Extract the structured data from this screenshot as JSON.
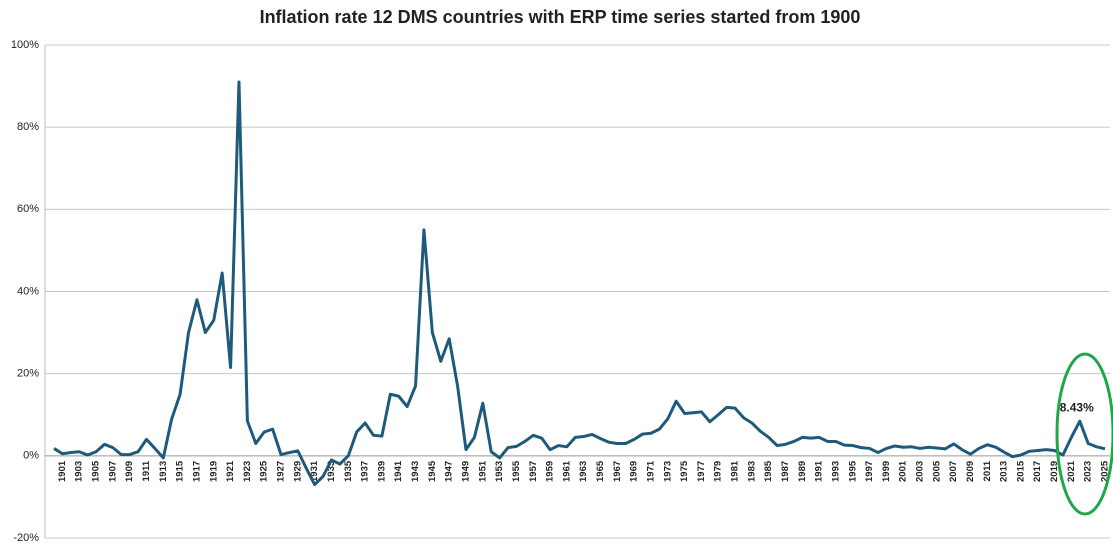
{
  "chart_data": {
    "type": "line",
    "title": "Inflation rate 12 DMS countries with ERP time series started from 1900",
    "x": [
      1900,
      1901,
      1902,
      1903,
      1904,
      1905,
      1906,
      1907,
      1908,
      1909,
      1910,
      1911,
      1912,
      1913,
      1914,
      1915,
      1916,
      1917,
      1918,
      1919,
      1920,
      1921,
      1922,
      1923,
      1924,
      1925,
      1926,
      1927,
      1928,
      1929,
      1930,
      1931,
      1932,
      1933,
      1934,
      1935,
      1936,
      1937,
      1938,
      1939,
      1940,
      1941,
      1942,
      1943,
      1944,
      1945,
      1946,
      1947,
      1948,
      1949,
      1950,
      1951,
      1952,
      1953,
      1954,
      1955,
      1956,
      1957,
      1958,
      1959,
      1960,
      1961,
      1962,
      1963,
      1964,
      1965,
      1966,
      1967,
      1968,
      1969,
      1970,
      1971,
      1972,
      1973,
      1974,
      1975,
      1976,
      1977,
      1978,
      1979,
      1980,
      1981,
      1982,
      1983,
      1984,
      1985,
      1986,
      1987,
      1988,
      1989,
      1990,
      1991,
      1992,
      1993,
      1994,
      1995,
      1996,
      1997,
      1998,
      1999,
      2000,
      2001,
      2002,
      2003,
      2004,
      2005,
      2006,
      2007,
      2008,
      2009,
      2010,
      2011,
      2012,
      2013,
      2014,
      2015,
      2016,
      2017,
      2018,
      2019,
      2020,
      2021,
      2022,
      2023,
      2024,
      2025
    ],
    "xticks": [
      1901,
      1903,
      1905,
      1907,
      1909,
      1911,
      1913,
      1915,
      1917,
      1919,
      1921,
      1923,
      1925,
      1927,
      1929,
      1931,
      1933,
      1935,
      1937,
      1939,
      1941,
      1943,
      1945,
      1947,
      1949,
      1951,
      1953,
      1955,
      1957,
      1959,
      1961,
      1963,
      1965,
      1967,
      1969,
      1971,
      1973,
      1975,
      1977,
      1979,
      1981,
      1983,
      1985,
      1987,
      1989,
      1991,
      1993,
      1995,
      1997,
      1999,
      2001,
      2003,
      2005,
      2007,
      2009,
      2011,
      2013,
      2015,
      2017,
      2019,
      2021,
      2023,
      2025
    ],
    "series": [
      {
        "color": "#1f5a7a",
        "values": [
          1.8,
          0.5,
          0.8,
          1.0,
          0.2,
          1.0,
          2.8,
          2.0,
          0.3,
          0.3,
          1.0,
          4.0,
          1.8,
          -0.5,
          9,
          15,
          30,
          38,
          30,
          33,
          44.5,
          21.5,
          91,
          8.5,
          3,
          5.8,
          6.5,
          0.3,
          0.8,
          1.2,
          -3,
          -7,
          -5,
          -1,
          -2,
          0,
          5.8,
          8,
          5,
          4.8,
          15,
          14.5,
          12,
          17,
          55,
          30,
          23,
          28.5,
          17,
          1.5,
          4.5,
          12.8,
          1,
          -0.5,
          2,
          2.3,
          3.5,
          5,
          4.3,
          1.5,
          2.5,
          2.2,
          4.5,
          4.7,
          5.2,
          4.2,
          3.3,
          3,
          3,
          4,
          5.3,
          5.5,
          6.5,
          9,
          13.3,
          10.3,
          10.5,
          10.7,
          8.3,
          10,
          11.8,
          11.6,
          9.3,
          8,
          6,
          4.5,
          2.5,
          2.8,
          3.5,
          4.5,
          4.3,
          4.5,
          3.5,
          3.5,
          2.6,
          2.5,
          2,
          1.8,
          0.8,
          1.8,
          2.4,
          2.1,
          2.2,
          1.8,
          2.1,
          1.9,
          1.7,
          2.9,
          1.5,
          0.4,
          1.8,
          2.7,
          2.1,
          0.9,
          -0.2,
          0.2,
          1.1,
          1.3,
          1.5,
          1.3,
          0.2,
          4.5,
          8.43,
          3,
          2.2,
          1.7
        ]
      }
    ],
    "ylim": [
      -20,
      100
    ],
    "yticks": [
      {
        "value": -20,
        "label": "-20%"
      },
      {
        "value": 0,
        "label": "0%"
      },
      {
        "value": 20,
        "label": "20%"
      },
      {
        "value": 40,
        "label": "40%"
      },
      {
        "value": 60,
        "label": "60%"
      },
      {
        "value": 80,
        "label": "80%"
      },
      {
        "value": 100,
        "label": "100%"
      }
    ],
    "grid": true,
    "annotation": {
      "label": "8.43%",
      "x": 2022
    }
  }
}
